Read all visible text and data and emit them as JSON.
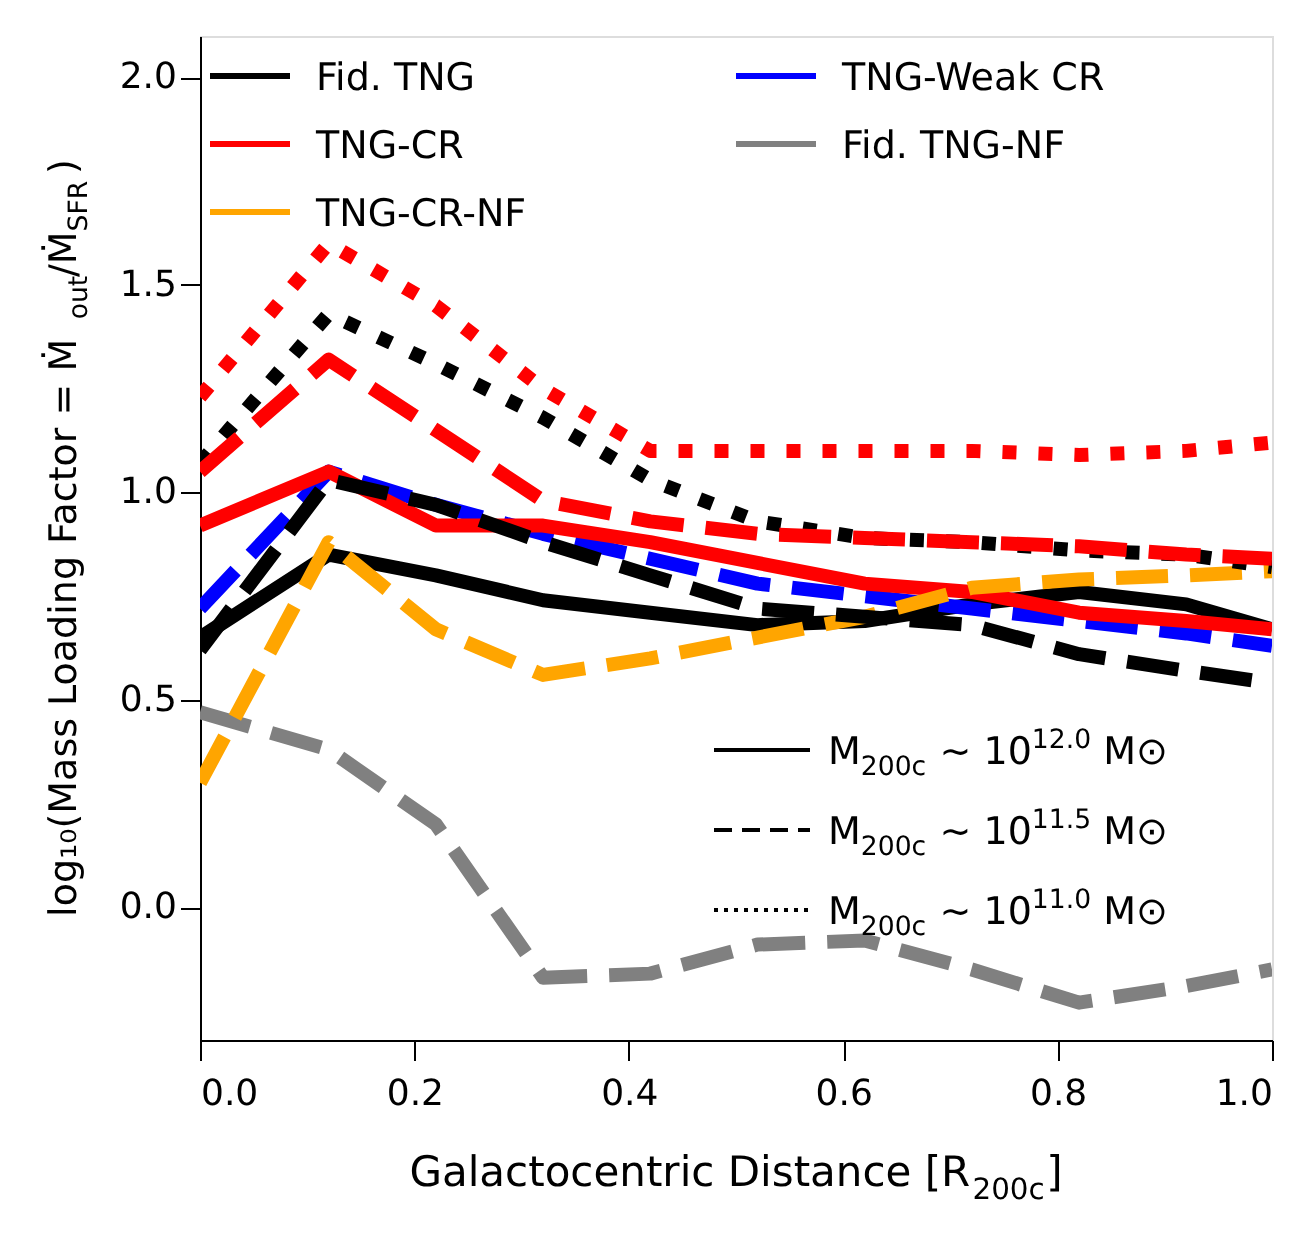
{
  "chart_data": {
    "type": "line",
    "xlabel": "Galactocentric Distance [R$_{200c}$]",
    "ylabel": "log₁₀(Mass Loading Factor = Ṁ$_{out}$/Ṁ$_{SFR}$)",
    "x": [
      0,
      0.12,
      0.22,
      0.32,
      0.42,
      0.52,
      0.62,
      0.72,
      0.82,
      0.92,
      1.0
    ],
    "series": [
      {
        "name": "Fid. TNG",
        "color": "#000000",
        "line_style": "solid",
        "values": [
          0.65,
          0.85,
          0.8,
          0.74,
          0.71,
          0.68,
          0.69,
          0.73,
          0.76,
          0.73,
          0.67
        ]
      },
      {
        "name": "TNG-Weak CR",
        "color": "#0000ff",
        "line_style": "dashed",
        "values": [
          0.72,
          1.05,
          0.97,
          0.9,
          0.84,
          0.78,
          0.75,
          0.72,
          0.69,
          0.66,
          0.63
        ]
      },
      {
        "name": "TNG-CR",
        "color": "#ff0000",
        "line_style": "solid",
        "values": [
          0.92,
          1.05,
          0.92,
          0.92,
          0.88,
          0.83,
          0.78,
          0.76,
          0.71,
          0.69,
          0.67
        ]
      },
      {
        "name": "Fid. TNG-NF",
        "color": "#808080",
        "line_style": "dashed",
        "values": [
          0.47,
          0.38,
          0.2,
          -0.17,
          -0.16,
          -0.09,
          -0.08,
          -0.15,
          -0.23,
          -0.19,
          -0.15
        ]
      },
      {
        "name": "TNG-CR-NF",
        "color": "#ffa500",
        "line_style": "dashed",
        "values": [
          0.3,
          0.88,
          0.67,
          0.56,
          0.6,
          0.65,
          0.7,
          0.77,
          0.79,
          0.8,
          0.81
        ]
      },
      {
        "color": "#000000",
        "line_style": "dashed",
        "values": [
          0.62,
          1.03,
          0.97,
          0.88,
          0.8,
          0.72,
          0.7,
          0.68,
          0.61,
          0.57,
          0.54
        ]
      },
      {
        "color": "#000000",
        "line_style": "dotted",
        "values": [
          1.07,
          1.43,
          1.31,
          1.18,
          1.03,
          0.93,
          0.89,
          0.88,
          0.86,
          0.85,
          0.82
        ]
      },
      {
        "color": "#ff0000",
        "line_style": "dashed",
        "values": [
          1.05,
          1.32,
          1.15,
          0.98,
          0.93,
          0.9,
          0.89,
          0.88,
          0.87,
          0.85,
          0.84
        ]
      },
      {
        "color": "#ff0000",
        "line_style": "dotted",
        "values": [
          1.23,
          1.6,
          1.45,
          1.25,
          1.1,
          1.1,
          1.1,
          1.1,
          1.09,
          1.1,
          1.12
        ]
      }
    ],
    "annotations": [
      "M$_{200c}$ ∼ 10$^{12.0}$ M⊙",
      "M$_{200c}$ ∼ 10$^{11.5}$ M⊙",
      "M$_{200c}$ ∼ 10$^{11.0}$ M⊙"
    ],
    "xlim": [
      0,
      1
    ],
    "ylim": [
      -0.32,
      2.1
    ],
    "xticks": [
      {
        "value": 0,
        "label": "0.0"
      },
      {
        "value": 0.2,
        "label": "0.2"
      },
      {
        "value": 0.4,
        "label": "0.4"
      },
      {
        "value": 0.6,
        "label": "0.6"
      },
      {
        "value": 0.8,
        "label": "0.8"
      },
      {
        "value": 1,
        "label": "1.0"
      }
    ],
    "yticks": [
      {
        "value": 0,
        "label": "0.0"
      },
      {
        "value": 0.5,
        "label": "0.5"
      },
      {
        "value": 1,
        "label": "1.0"
      },
      {
        "value": 1.5,
        "label": "1.5"
      },
      {
        "value": 2,
        "label": "2.0"
      }
    ],
    "legend": "top left",
    "grid": false
  }
}
